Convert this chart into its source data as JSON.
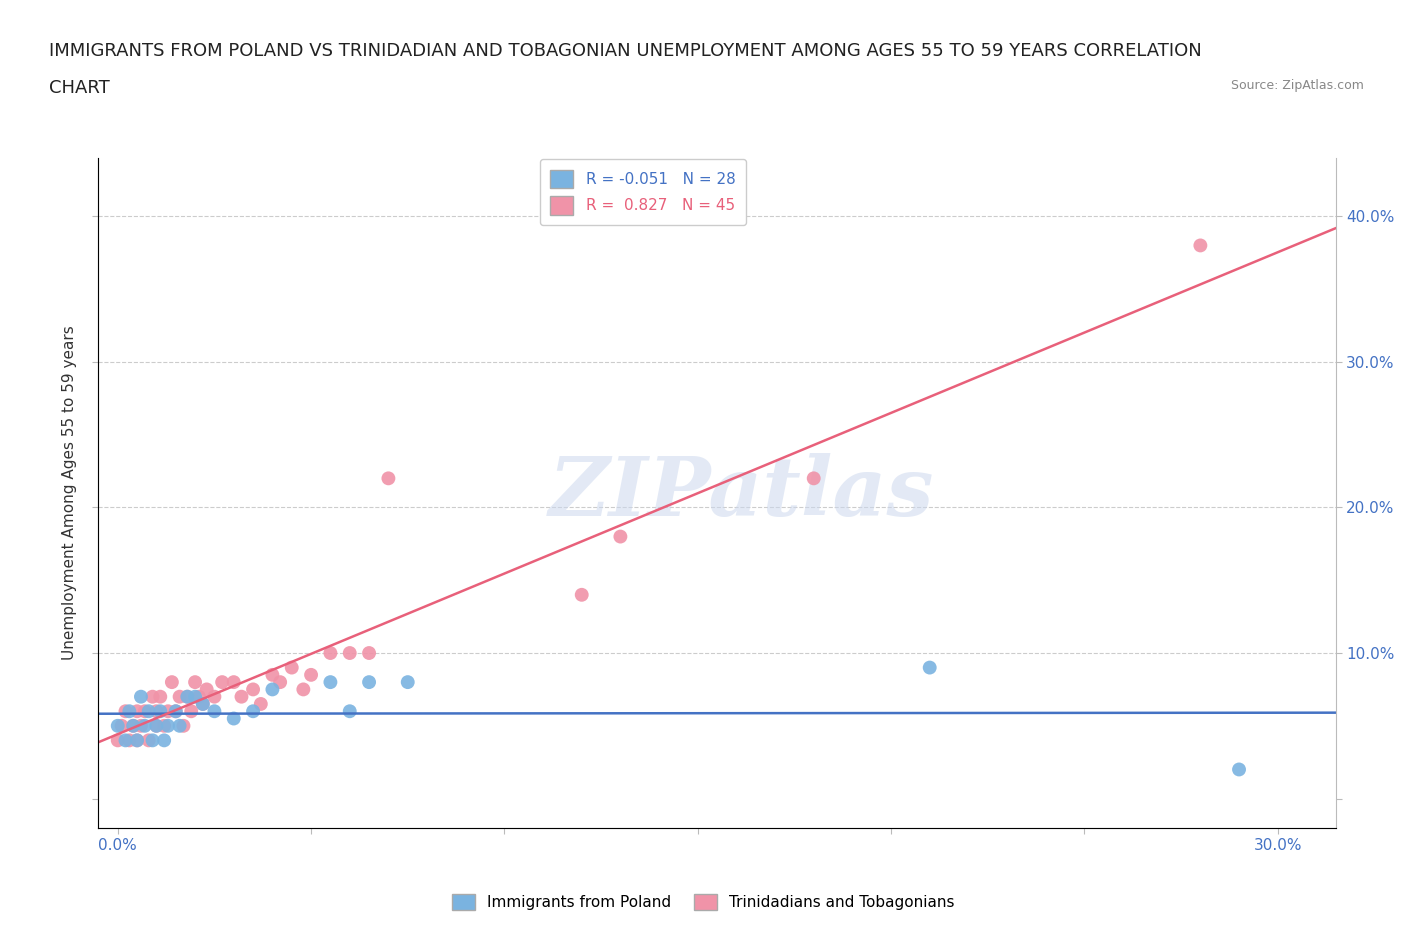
{
  "title_line1": "IMMIGRANTS FROM POLAND VS TRINIDADIAN AND TOBAGONIAN UNEMPLOYMENT AMONG AGES 55 TO 59 YEARS CORRELATION",
  "title_line2": "CHART",
  "source": "Source: ZipAtlas.com",
  "ylabel": "Unemployment Among Ages 55 to 59 years",
  "xlim": [
    -0.005,
    0.315
  ],
  "ylim": [
    -0.02,
    0.44
  ],
  "watermark": "ZIPatlas",
  "poland_color": "#7ab3e0",
  "trinidad_color": "#f093a8",
  "poland_line_color": "#4472C4",
  "trinidad_line_color": "#e8607a",
  "poland_x": [
    0.0,
    0.002,
    0.003,
    0.004,
    0.005,
    0.006,
    0.007,
    0.008,
    0.009,
    0.01,
    0.011,
    0.012,
    0.013,
    0.015,
    0.016,
    0.018,
    0.02,
    0.022,
    0.025,
    0.03,
    0.035,
    0.04,
    0.055,
    0.06,
    0.065,
    0.075,
    0.21,
    0.29
  ],
  "poland_y": [
    0.05,
    0.04,
    0.06,
    0.05,
    0.04,
    0.07,
    0.05,
    0.06,
    0.04,
    0.05,
    0.06,
    0.04,
    0.05,
    0.06,
    0.05,
    0.07,
    0.07,
    0.065,
    0.06,
    0.055,
    0.06,
    0.075,
    0.08,
    0.06,
    0.08,
    0.08,
    0.09,
    0.02
  ],
  "trinidad_x": [
    0.0,
    0.001,
    0.002,
    0.003,
    0.004,
    0.005,
    0.005,
    0.006,
    0.007,
    0.008,
    0.009,
    0.01,
    0.01,
    0.011,
    0.012,
    0.013,
    0.014,
    0.015,
    0.016,
    0.017,
    0.018,
    0.019,
    0.02,
    0.021,
    0.022,
    0.023,
    0.025,
    0.027,
    0.03,
    0.032,
    0.035,
    0.037,
    0.04,
    0.042,
    0.045,
    0.048,
    0.05,
    0.055,
    0.06,
    0.065,
    0.07,
    0.12,
    0.13,
    0.18,
    0.28
  ],
  "trinidad_y": [
    0.04,
    0.05,
    0.06,
    0.04,
    0.05,
    0.04,
    0.06,
    0.05,
    0.06,
    0.04,
    0.07,
    0.05,
    0.06,
    0.07,
    0.05,
    0.06,
    0.08,
    0.06,
    0.07,
    0.05,
    0.07,
    0.06,
    0.08,
    0.07,
    0.065,
    0.075,
    0.07,
    0.08,
    0.08,
    0.07,
    0.075,
    0.065,
    0.085,
    0.08,
    0.09,
    0.075,
    0.085,
    0.1,
    0.1,
    0.1,
    0.22,
    0.14,
    0.18,
    0.22,
    0.38
  ],
  "background_color": "#ffffff",
  "grid_color": "#cccccc",
  "axis_color": "#bbbbbb",
  "tick_color": "#4472C4",
  "title_fontsize": 13,
  "label_fontsize": 11,
  "tick_fontsize": 11,
  "source_fontsize": 9
}
